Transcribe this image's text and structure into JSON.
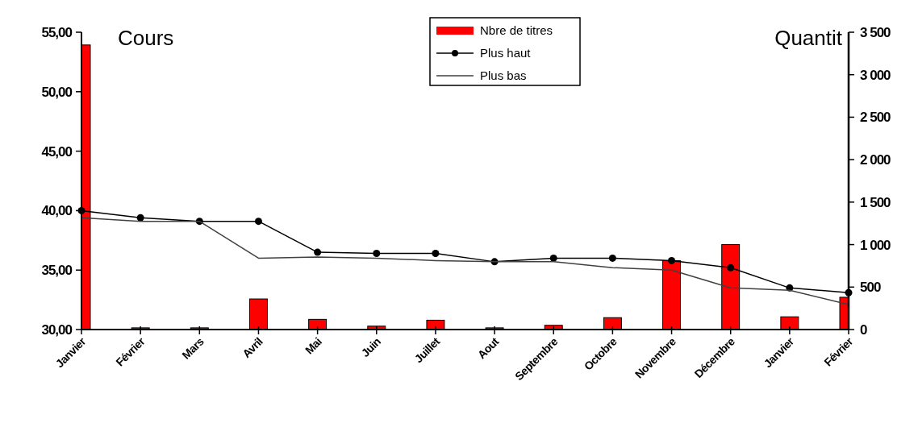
{
  "chart_data": {
    "type": "bar",
    "categories": [
      "Janvier",
      "Février",
      "Mars",
      "Avril",
      "Mai",
      "Juin",
      "Juillet",
      "Aout",
      "Septembre",
      "Octobre",
      "Novembre",
      "Décembre",
      "Janvier",
      "Février"
    ],
    "series": [
      {
        "name": "Nbre de titres",
        "axis": "y2",
        "color": "#ff0000",
        "values": [
          3350,
          20,
          20,
          360,
          120,
          40,
          110,
          20,
          50,
          140,
          810,
          1000,
          150,
          380
        ]
      },
      {
        "name": "Plus haut",
        "type": "line",
        "color": "#000000",
        "marker": "circle",
        "values": [
          40.0,
          39.4,
          39.1,
          39.1,
          36.5,
          36.4,
          36.4,
          35.7,
          36.0,
          36.0,
          35.8,
          35.2,
          33.5,
          33.1
        ]
      },
      {
        "name": "Plus bas",
        "type": "line",
        "color": "#404040",
        "marker": "none",
        "values": [
          39.4,
          39.1,
          39.1,
          36.0,
          36.1,
          36.0,
          35.8,
          35.7,
          35.7,
          35.2,
          35.0,
          33.5,
          33.3,
          32.1
        ]
      }
    ],
    "ylabel": "Cours",
    "y2label": "Quantit",
    "ylim": [
      30,
      55
    ],
    "yticks": [
      {
        "value": 30,
        "label": "30,00"
      },
      {
        "value": 35,
        "label": "35,00"
      },
      {
        "value": 40,
        "label": "40,00"
      },
      {
        "value": 45,
        "label": "45,00"
      },
      {
        "value": 50,
        "label": "50,00"
      },
      {
        "value": 55,
        "label": "55,00"
      }
    ],
    "y2lim": [
      0,
      3500
    ],
    "y2ticks": [
      0,
      500,
      {
        "value": 1000,
        "label": "1 000"
      },
      {
        "value": 1500,
        "label": "1 500"
      },
      {
        "value": 2000,
        "label": "2 000"
      },
      {
        "value": 2500,
        "label": "2 500"
      },
      {
        "value": 3000,
        "label": "3 000"
      },
      {
        "value": 3500,
        "label": "3 500"
      }
    ],
    "legend": "top",
    "grid": false
  }
}
